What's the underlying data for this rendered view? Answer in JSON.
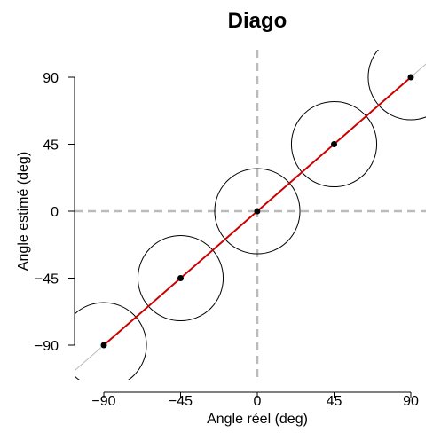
{
  "chart_data": {
    "type": "scatter",
    "title": "Diago",
    "xlabel": "Angle réel (deg)",
    "ylabel": "Angle estimé (deg)",
    "xlim": [
      -100,
      100
    ],
    "ylim": [
      -100,
      100
    ],
    "xticks": [
      -90,
      -45,
      0,
      45,
      90
    ],
    "yticks": [
      -90,
      -45,
      0,
      45,
      90
    ],
    "xtick_labels": [
      "−90",
      "−45",
      "0",
      "45",
      "90"
    ],
    "ytick_labels": [
      "−90",
      "−45",
      "0",
      "45",
      "90"
    ],
    "points": [
      {
        "x": -90,
        "y": -90
      },
      {
        "x": -45,
        "y": -45
      },
      {
        "x": 0,
        "y": 0
      },
      {
        "x": 45,
        "y": 45
      },
      {
        "x": 90,
        "y": 90
      }
    ],
    "circle_radius": 25,
    "identity_line": {
      "color": "#bbbbbb"
    },
    "fit_line": {
      "from": -90,
      "to": 90,
      "color": "#cc0000"
    },
    "reference_lines": {
      "x": 0,
      "y": 0,
      "style": "dashed",
      "color": "#bbbbbb"
    },
    "grid": false,
    "legend": "none"
  }
}
